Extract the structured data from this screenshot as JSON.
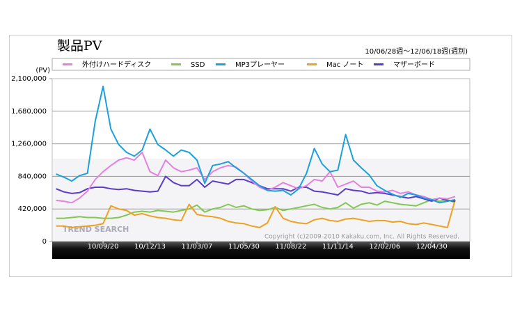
{
  "chart_data": {
    "type": "line",
    "title": "製品PV",
    "subtitle": "10/06/28週～12/06/18週(週別)",
    "y_unit": "(PV)",
    "copyright": "Copyright (c)2009-2010 Kakaku.com, Inc. All Rights Reserved.",
    "logo": "TREND SEARCH",
    "categories": [
      null,
      null,
      null,
      null,
      null,
      null,
      "10/09/20",
      null,
      null,
      null,
      null,
      null,
      "10/12/13",
      null,
      null,
      null,
      null,
      null,
      "11/03/07",
      null,
      null,
      null,
      null,
      null,
      "11/05/30",
      null,
      null,
      null,
      null,
      null,
      "11/08/22",
      null,
      null,
      null,
      null,
      null,
      "11/11/14",
      null,
      null,
      null,
      null,
      null,
      "12/02/06",
      null,
      null,
      null,
      null,
      null,
      "12/04/30",
      null,
      null,
      null
    ],
    "ylim": [
      0,
      2100000
    ],
    "yticks": [
      0,
      {
        "value": 420000,
        "label": "420,000"
      },
      {
        "value": 840000,
        "label": "840,000"
      },
      {
        "value": 1260000,
        "label": "1,260,000"
      },
      {
        "value": 1680000,
        "label": "1,680,000"
      },
      {
        "value": 2100000,
        "label": "2,100,000"
      }
    ],
    "grid": true,
    "series": [
      {
        "name": "外付けハードディスク",
        "color": "#e680e0",
        "values": [
          530000,
          520000,
          500000,
          560000,
          650000,
          800000,
          900000,
          980000,
          1050000,
          1080000,
          1050000,
          1150000,
          900000,
          850000,
          1050000,
          950000,
          900000,
          920000,
          950000,
          800000,
          900000,
          950000,
          980000,
          960000,
          880000,
          780000,
          700000,
          660000,
          700000,
          760000,
          720000,
          680000,
          720000,
          800000,
          780000,
          900000,
          700000,
          740000,
          780000,
          700000,
          700000,
          650000,
          640000,
          660000,
          620000,
          640000,
          600000,
          580000,
          540000,
          560000,
          550000,
          580000
        ]
      },
      {
        "name": "SSD",
        "color": "#80c850",
        "values": [
          300000,
          300000,
          310000,
          320000,
          310000,
          310000,
          300000,
          300000,
          310000,
          340000,
          380000,
          390000,
          380000,
          400000,
          390000,
          380000,
          400000,
          420000,
          470000,
          380000,
          420000,
          440000,
          480000,
          440000,
          460000,
          420000,
          400000,
          410000,
          440000,
          400000,
          420000,
          440000,
          460000,
          480000,
          440000,
          420000,
          440000,
          500000,
          430000,
          480000,
          500000,
          470000,
          520000,
          500000,
          480000,
          470000,
          460000,
          500000,
          540000,
          520000,
          540000,
          500000
        ]
      },
      {
        "name": "MP3プレーヤー",
        "color": "#1aa0dc",
        "values": [
          870000,
          830000,
          780000,
          850000,
          880000,
          1550000,
          2000000,
          1450000,
          1250000,
          1150000,
          1100000,
          1180000,
          1450000,
          1250000,
          1180000,
          1100000,
          1180000,
          1150000,
          1050000,
          750000,
          980000,
          1000000,
          1030000,
          950000,
          880000,
          800000,
          720000,
          660000,
          650000,
          660000,
          600000,
          680000,
          880000,
          1200000,
          1000000,
          900000,
          920000,
          1380000,
          1050000,
          950000,
          860000,
          720000,
          660000,
          610000,
          570000,
          620000,
          600000,
          560000,
          540000,
          500000,
          520000,
          540000
        ]
      },
      {
        "name": "Mac ノート",
        "color": "#f0a020",
        "values": [
          200000,
          200000,
          180000,
          190000,
          200000,
          210000,
          230000,
          460000,
          420000,
          400000,
          340000,
          360000,
          330000,
          310000,
          300000,
          280000,
          270000,
          480000,
          350000,
          330000,
          320000,
          300000,
          260000,
          240000,
          230000,
          200000,
          180000,
          240000,
          450000,
          300000,
          260000,
          240000,
          230000,
          280000,
          300000,
          270000,
          260000,
          290000,
          300000,
          280000,
          260000,
          270000,
          270000,
          250000,
          260000,
          230000,
          220000,
          240000,
          220000,
          200000,
          180000,
          540000
        ]
      },
      {
        "name": "マザーボード",
        "color": "#5a3cc8",
        "values": [
          680000,
          640000,
          620000,
          630000,
          680000,
          700000,
          700000,
          680000,
          670000,
          680000,
          660000,
          650000,
          640000,
          650000,
          840000,
          760000,
          720000,
          720000,
          800000,
          700000,
          780000,
          760000,
          740000,
          800000,
          800000,
          760000,
          720000,
          680000,
          680000,
          680000,
          650000,
          700000,
          700000,
          650000,
          640000,
          620000,
          600000,
          680000,
          660000,
          650000,
          620000,
          630000,
          620000,
          600000,
          580000,
          560000,
          580000,
          550000,
          520000,
          560000,
          530000,
          520000
        ]
      }
    ]
  }
}
